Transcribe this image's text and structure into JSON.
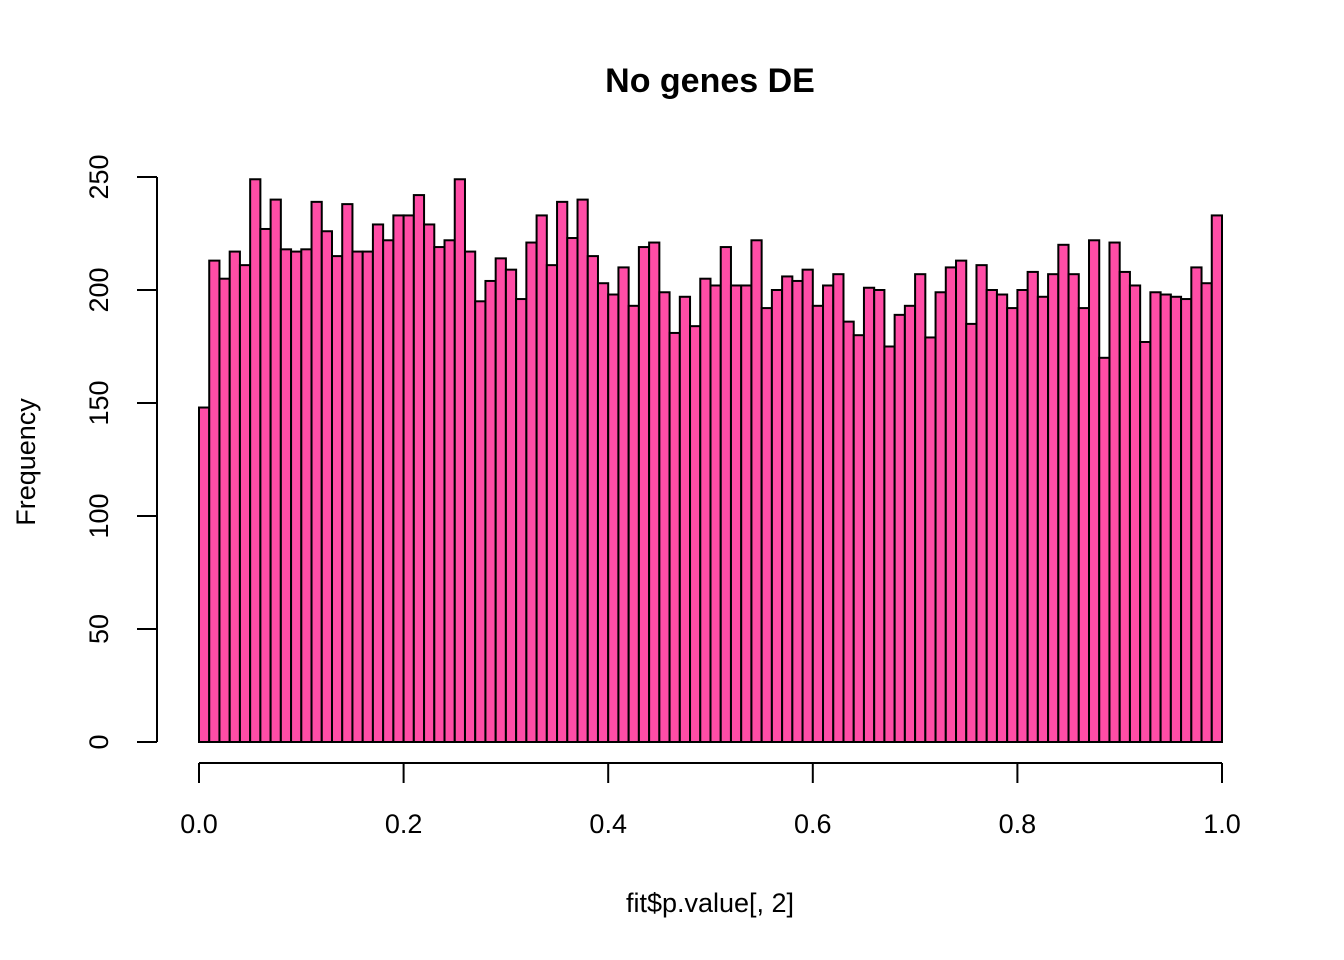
{
  "chart_data": {
    "type": "bar",
    "subtype": "histogram",
    "title": "No genes DE",
    "xlabel": "fit$p.value[, 2]",
    "ylabel": "Frequency",
    "bin_width": 0.01,
    "xlim": [
      0,
      1
    ],
    "ylim": [
      0,
      250
    ],
    "x_ticks": [
      0.0,
      0.2,
      0.4,
      0.6,
      0.8,
      1.0
    ],
    "x_tick_labels": [
      "0.0",
      "0.2",
      "0.4",
      "0.6",
      "0.8",
      "1.0"
    ],
    "y_ticks": [
      0,
      50,
      100,
      150,
      200,
      250
    ],
    "y_tick_labels": [
      "0",
      "50",
      "100",
      "150",
      "200",
      "250"
    ],
    "bar_color": "#ff4da6",
    "edge_color": "#000000",
    "grid": false,
    "legend": "none",
    "values": [
      148,
      213,
      205,
      217,
      211,
      249,
      227,
      240,
      218,
      217,
      218,
      239,
      226,
      215,
      238,
      217,
      217,
      229,
      222,
      233,
      233,
      242,
      229,
      219,
      222,
      249,
      217,
      195,
      204,
      214,
      209,
      196,
      221,
      233,
      211,
      239,
      223,
      240,
      215,
      203,
      198,
      210,
      193,
      219,
      221,
      199,
      181,
      197,
      184,
      205,
      202,
      219,
      202,
      202,
      222,
      192,
      200,
      206,
      204,
      209,
      193,
      202,
      207,
      186,
      180,
      201,
      200,
      175,
      189,
      193,
      207,
      179,
      199,
      210,
      213,
      185,
      211,
      200,
      198,
      192,
      200,
      208,
      197,
      207,
      220,
      207,
      192,
      222,
      170,
      221,
      208,
      202,
      177,
      199,
      198,
      197,
      196,
      210,
      203,
      233
    ]
  }
}
